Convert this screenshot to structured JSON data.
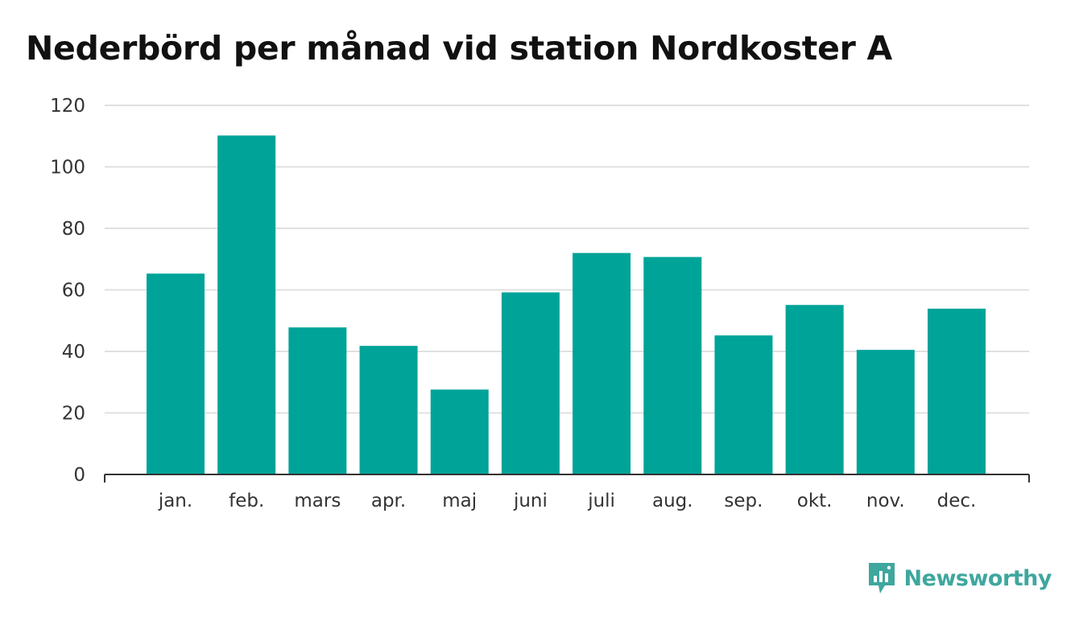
{
  "title": "Nederbörd per månad vid station Nordkoster A",
  "brand": {
    "name": "Newsworthy",
    "icon": "newsworthy-logo-icon",
    "color": "#3fa79e"
  },
  "chart_data": {
    "type": "bar",
    "title": "Nederbörd per månad vid station Nordkoster A",
    "xlabel": "",
    "ylabel": "",
    "categories": [
      "jan.",
      "feb.",
      "mars",
      "apr.",
      "maj",
      "juni",
      "juli",
      "aug.",
      "sep.",
      "okt.",
      "nov.",
      "dec."
    ],
    "values": [
      65.3,
      110.2,
      47.8,
      41.8,
      27.6,
      59.2,
      72.0,
      70.7,
      45.2,
      55.1,
      40.5,
      53.9
    ],
    "ylim": [
      0,
      120
    ],
    "yticks": [
      0,
      20,
      40,
      60,
      80,
      100,
      120
    ],
    "grid": true,
    "legend": "none",
    "bar_color": "#00a398"
  }
}
